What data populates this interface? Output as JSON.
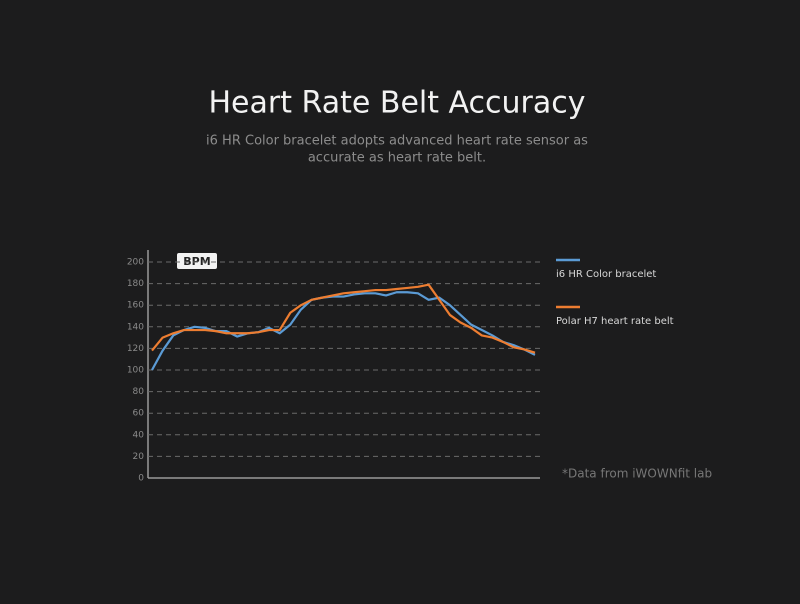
{
  "chart_data": {
    "type": "line",
    "title": "Heart Rate Belt Accuracy",
    "subtitle": [
      "i6 HR Color bracelet adopts advanced heart rate sensor as",
      "accurate as heart rate belt."
    ],
    "y_label": "BPM",
    "annotation": "*Data from iWOWNfit lab",
    "categories": [
      null,
      null,
      null,
      null,
      null,
      null,
      null,
      null,
      null,
      null,
      null,
      null,
      null,
      null,
      null,
      null,
      null,
      null,
      null,
      null,
      null,
      null,
      null,
      null,
      null,
      null,
      null,
      null,
      null,
      null,
      null,
      null,
      null,
      null,
      null,
      null,
      null
    ],
    "series": [
      {
        "name": "i6 HR Color bracelet",
        "color": "#5b9bd5",
        "values": [
          100,
          118,
          132,
          137,
          140,
          139,
          136,
          136,
          131,
          134,
          135,
          139,
          134,
          142,
          156,
          165,
          167,
          168,
          168,
          170,
          171,
          171,
          169,
          172,
          172,
          171,
          165,
          167,
          160,
          151,
          142,
          137,
          132,
          126,
          123,
          119,
          114
        ]
      },
      {
        "name": "Polar H7 heart rate belt",
        "color": "#ed7d31",
        "values": [
          118,
          130,
          134,
          137,
          137,
          137,
          136,
          134,
          134,
          134,
          135,
          137,
          137,
          153,
          160,
          165,
          167,
          169,
          171,
          172,
          173,
          174,
          174,
          175,
          176,
          177,
          179,
          165,
          151,
          144,
          139,
          132,
          130,
          126,
          121,
          119,
          116
        ]
      }
    ],
    "ylim": [
      0,
      200
    ],
    "yticks": [
      0,
      20,
      40,
      60,
      80,
      100,
      120,
      140,
      160,
      180,
      200
    ],
    "grid": true
  }
}
